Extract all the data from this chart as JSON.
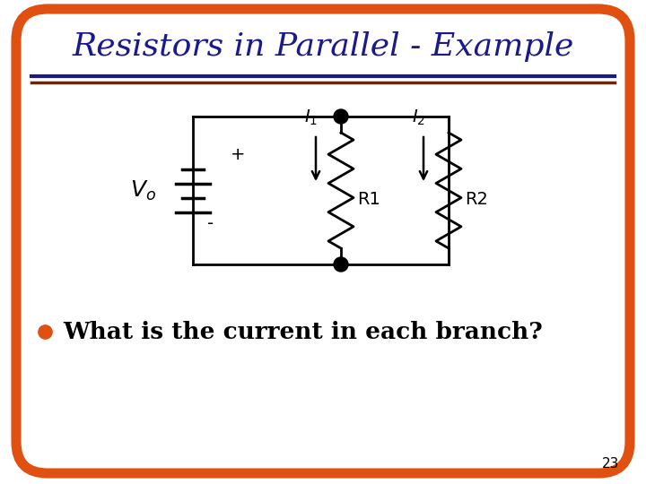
{
  "title": "Resistors in Parallel - Example",
  "title_color": "#1a1a8c",
  "title_fontsize": 26,
  "background_color": "#ffffff",
  "border_color": "#e05010",
  "border_linewidth": 8,
  "separator_color1": "#1a1a8c",
  "separator_color2": "#7b2000",
  "bullet_color": "#e05010",
  "bullet_text": "What is the current in each branch?",
  "bullet_fontsize": 19,
  "page_number": "23"
}
